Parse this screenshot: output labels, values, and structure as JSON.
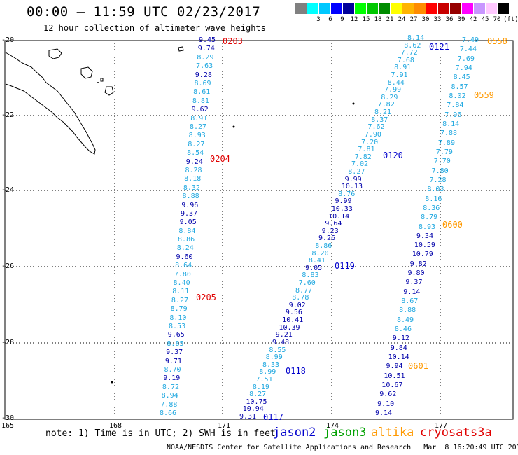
{
  "title": "00:00 — 11:59 UTC 02/23/2017",
  "subtitle": "12 hour collection of altimeter wave heights",
  "scale": {
    "labels": [
      "",
      "3",
      "6",
      "9",
      "12",
      "15",
      "18",
      "21",
      "24",
      "27",
      "30",
      "33",
      "36",
      "39",
      "42",
      "45",
      "70",
      "(ft)"
    ],
    "colors": [
      "#808080",
      "#00ffff",
      "#00c8ff",
      "#0000ff",
      "#00009a",
      "#00ff00",
      "#00c800",
      "#008c00",
      "#ffff00",
      "#ffb400",
      "#ff8c00",
      "#ff0000",
      "#c80000",
      "#960000",
      "#ff00ff",
      "#c896ff",
      "#ffc8ff",
      "#000000"
    ]
  },
  "axes": {
    "lat_labels": [
      "-20",
      "-22",
      "-24",
      "-26",
      "-28",
      "-30"
    ],
    "lon_labels": [
      "165",
      "168",
      "171",
      "174",
      "177"
    ]
  },
  "tracks": [
    {
      "id": "0203",
      "sat": "cryosat",
      "label": "0203"
    },
    {
      "id": "0204",
      "sat": "cryosat",
      "label": "0204"
    },
    {
      "id": "0205",
      "sat": "cryosat",
      "label": "0205"
    },
    {
      "id": "0117",
      "sat": "jason2",
      "label": "0117"
    },
    {
      "id": "0118",
      "sat": "jason2",
      "label": "0118"
    },
    {
      "id": "0119",
      "sat": "jason2",
      "label": "0119"
    },
    {
      "id": "0120",
      "sat": "jason2",
      "label": "0120"
    },
    {
      "id": "0121",
      "sat": "jason2",
      "label": "0121"
    },
    {
      "id": "0558",
      "sat": "altika",
      "label": "0558"
    },
    {
      "id": "0559",
      "sat": "altika",
      "label": "0559"
    },
    {
      "id": "0600",
      "sat": "altika",
      "label": "0600"
    },
    {
      "id": "0601",
      "sat": "altika",
      "label": "0601"
    }
  ],
  "track_colors": {
    "cryosat": "#e00000",
    "jason2": "#0000cc",
    "altika": "#ff9900"
  },
  "value_colors": {
    "cyan": "#20a8e0",
    "blue": "#0000aa"
  },
  "track_a_values": [
    "9.45",
    "9.74",
    "8.29",
    "7.63",
    "9.28",
    "8.69",
    "8.61",
    "8.81",
    "9.62",
    "8.91",
    "8.27",
    "8.93",
    "8.27",
    "8.54",
    "9.24",
    "8.28",
    "8.18",
    "8.32",
    "8.88",
    "9.96",
    "9.37",
    "9.05",
    "8.84",
    "8.86",
    "8.24",
    "9.60",
    "8.64",
    "7.80",
    "8.40",
    "8.11",
    "8.27",
    "8.79",
    "8.10",
    "8.53",
    "9.65",
    "8.85",
    "9.37",
    "9.71",
    "8.70",
    "9.19",
    "8.72",
    "8.94",
    "7.88",
    "8.66"
  ],
  "track_b_values": [
    "9.31",
    "10.94",
    "10.75",
    "8.27",
    "8.19",
    "7.51",
    "8.99",
    "8.33",
    "8.99",
    "8.55",
    "9.48",
    "9.21",
    "10.39",
    "10.41",
    "9.56",
    "9.02",
    "8.78",
    "8.77",
    "7.60",
    "8.83",
    "9.05",
    "8.41",
    "8.20",
    "8.86",
    "9.26",
    "9.23",
    "9.64",
    "10.14",
    "10.33",
    "9.99",
    "8.76",
    "10.13",
    "9.99",
    "8.27",
    "7.02",
    "7.82",
    "7.81",
    "7.20",
    "7.90",
    "7.62",
    "8.37",
    "8.21",
    "7.82",
    "8.29",
    "7.99",
    "8.44",
    "7.91",
    "8.91",
    "7.68",
    "7.72",
    "8.62",
    "8.14"
  ],
  "track_c_values": [
    "9.14",
    "9.10",
    "9.62",
    "10.67",
    "10.51",
    "9.94",
    "10.14",
    "9.84",
    "9.12",
    "8.46",
    "8.49",
    "8.88",
    "8.67",
    "9.14",
    "9.37",
    "9.80",
    "9.82",
    "10.79",
    "10.59",
    "9.34",
    "8.93",
    "8.79",
    "8.36",
    "8.16",
    "8.03",
    "7.28",
    "7.80",
    "7.70",
    "7.79",
    "7.89",
    "7.88",
    "8.14",
    "7.96",
    "7.84",
    "8.02",
    "8.57",
    "8.45",
    "7.94",
    "7.69",
    "7.44",
    "7.49"
  ],
  "note": "note: 1) Time is in UTC; 2) SWH is in feet",
  "satellites": [
    {
      "name": "jason2",
      "color": "#0000cc"
    },
    {
      "name": "jason3",
      "color": "#00a000"
    },
    {
      "name": "altika",
      "color": "#ff9900"
    },
    {
      "name": "cryosat",
      "color": "#e00000"
    },
    {
      "name": "s3a",
      "color": "#e00000"
    }
  ],
  "credit": "NOAA/NESDIS Center for Satellite Applications and Research   Mar  8 16:20:49 UTC 2017"
}
